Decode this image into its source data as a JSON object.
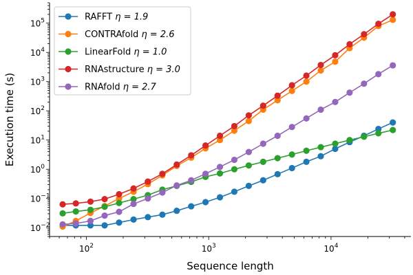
{
  "chart_data": {
    "type": "line",
    "xscale": "log",
    "yscale": "log",
    "xlabel": "Sequence length",
    "ylabel": "Execution time (s)",
    "xlim": [
      50,
      45000
    ],
    "ylim": [
      0.005,
      500000
    ],
    "xticks": [
      {
        "value": 100,
        "base": "10",
        "exp": "2"
      },
      {
        "value": 1000,
        "base": "10",
        "exp": "3"
      },
      {
        "value": 10000,
        "base": "10",
        "exp": "4"
      }
    ],
    "yticks": [
      {
        "value": 0.01,
        "base": "10",
        "exp": "−2"
      },
      {
        "value": 0.1,
        "base": "10",
        "exp": "−1"
      },
      {
        "value": 1,
        "base": "10",
        "exp": "0"
      },
      {
        "value": 10,
        "base": "10",
        "exp": "1"
      },
      {
        "value": 100,
        "base": "10",
        "exp": "2"
      },
      {
        "value": 1000,
        "base": "10",
        "exp": "3"
      },
      {
        "value": 10000,
        "base": "10",
        "exp": "4"
      },
      {
        "value": 100000,
        "base": "10",
        "exp": "5"
      }
    ],
    "grid": false,
    "legend_position": "top-left",
    "x": [
      64,
      82,
      108,
      141,
      185,
      243,
      318,
      418,
      548,
      719,
      942,
      1235,
      1620,
      2125,
      2787,
      3655,
      4794,
      6287,
      8245,
      10814,
      14183,
      18600,
      24395,
      31996
    ],
    "series": [
      {
        "name": "RAFFT",
        "eta_label": "η = 1.9",
        "color": "#1f77b4",
        "values": [
          0.012,
          0.012,
          0.012,
          0.012,
          0.015,
          0.019,
          0.023,
          0.028,
          0.038,
          0.054,
          0.075,
          0.11,
          0.17,
          0.27,
          0.42,
          0.68,
          1.1,
          1.8,
          2.8,
          5.0,
          8.5,
          14,
          24,
          40
        ]
      },
      {
        "name": "CONTRAfold",
        "eta_label": "η = 2.6",
        "color": "#ff7f0e",
        "values": [
          0.011,
          0.017,
          0.032,
          0.055,
          0.1,
          0.17,
          0.31,
          0.62,
          1.3,
          2.5,
          5.2,
          10,
          21,
          45,
          110,
          230,
          480,
          1000,
          2400,
          4800,
          14000,
          32000,
          80000,
          130000
        ]
      },
      {
        "name": "LinearFold",
        "eta_label": "η = 1.0",
        "color": "#2ca02c",
        "values": [
          0.031,
          0.036,
          0.041,
          0.052,
          0.07,
          0.095,
          0.13,
          0.2,
          0.27,
          0.37,
          0.55,
          0.72,
          1.0,
          1.35,
          1.8,
          2.4,
          3.2,
          4.3,
          5.7,
          7.5,
          10,
          13,
          17,
          22
        ]
      },
      {
        "name": "RNAstructure",
        "eta_label": "η = 3.0",
        "color": "#d62728",
        "values": [
          0.063,
          0.068,
          0.078,
          0.095,
          0.14,
          0.22,
          0.38,
          0.7,
          1.45,
          3.0,
          6.5,
          14,
          30,
          70,
          150,
          330,
          750,
          1600,
          3700,
          8000,
          19000,
          42000,
          95000,
          200000
        ]
      },
      {
        "name": "RNAfold",
        "eta_label": "η = 2.7",
        "color": "#9467bd",
        "values": [
          0.013,
          0.014,
          0.017,
          0.026,
          0.035,
          0.065,
          0.1,
          0.16,
          0.28,
          0.42,
          0.7,
          1.2,
          2.1,
          3.9,
          7.5,
          14,
          28,
          55,
          110,
          200,
          420,
          850,
          1800,
          3600
        ]
      }
    ]
  }
}
